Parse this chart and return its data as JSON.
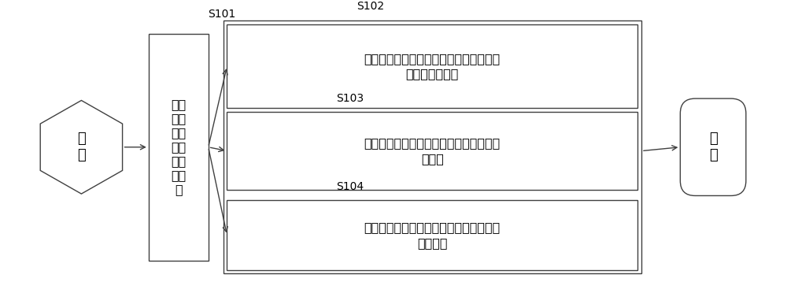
{
  "bg_color": "#ffffff",
  "line_color": "#404040",
  "box_fill": "#ffffff",
  "text_color": "#000000",
  "start_label": "开\n始",
  "end_label": "结\n束",
  "s101_label": "S101",
  "s102_label": "S102",
  "s103_label": "S103",
  "s104_label": "S104",
  "step101_text": "获取\n发动\n机工\n作时\n的各\n项参\n数",
  "step102_text": "根据获取的空燃比和排气温度，智能控制\n发动机的空燃比",
  "step103_text": "根据获取的燃烧信号，智能控制发动机的\n点火角",
  "step104_text": "根据获取的运转信号，智能控制发动机的\n运转边界",
  "font_size_main": 13,
  "font_size_label": 10,
  "font_size_step": 11.5
}
